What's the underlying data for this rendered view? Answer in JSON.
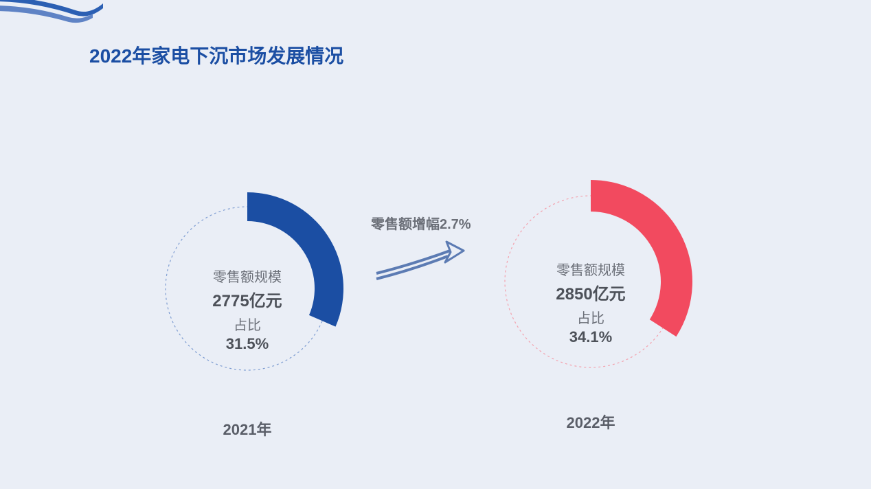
{
  "title": "2022年家电下沉市场发展情况",
  "background_color": "#eaeef6",
  "title_color": "#1b4ea3",
  "title_fontsize": 28,
  "growth_label": "零售额增幅2.7%",
  "swoosh": {
    "color_top": "#2b5fb3",
    "color_bottom": "#5f83c5"
  },
  "arrow": {
    "stroke": "#5c7bb3",
    "stroke_width": 4
  },
  "donuts": [
    {
      "year_label": "2021年",
      "percent": 31.5,
      "arc_color": "#1b4ea3",
      "dash_color": "#7d9cd1",
      "track_width": 42,
      "radius_outer": 140,
      "center_text": {
        "line1": "零售额规模",
        "line2": "2775亿元",
        "line3": "占比",
        "line4": "31.5%"
      }
    },
    {
      "year_label": "2022年",
      "percent": 34.1,
      "arc_color": "#f24a5f",
      "dash_color": "#f3a1ad",
      "track_width": 46,
      "radius_outer": 148,
      "center_text": {
        "line1": "零售额规模",
        "line2": "2850亿元",
        "line3": "占比",
        "line4": "34.1%"
      }
    }
  ],
  "text_colors": {
    "label": "#6b6f78",
    "value": "#4d5159",
    "year": "#5a5e68"
  }
}
